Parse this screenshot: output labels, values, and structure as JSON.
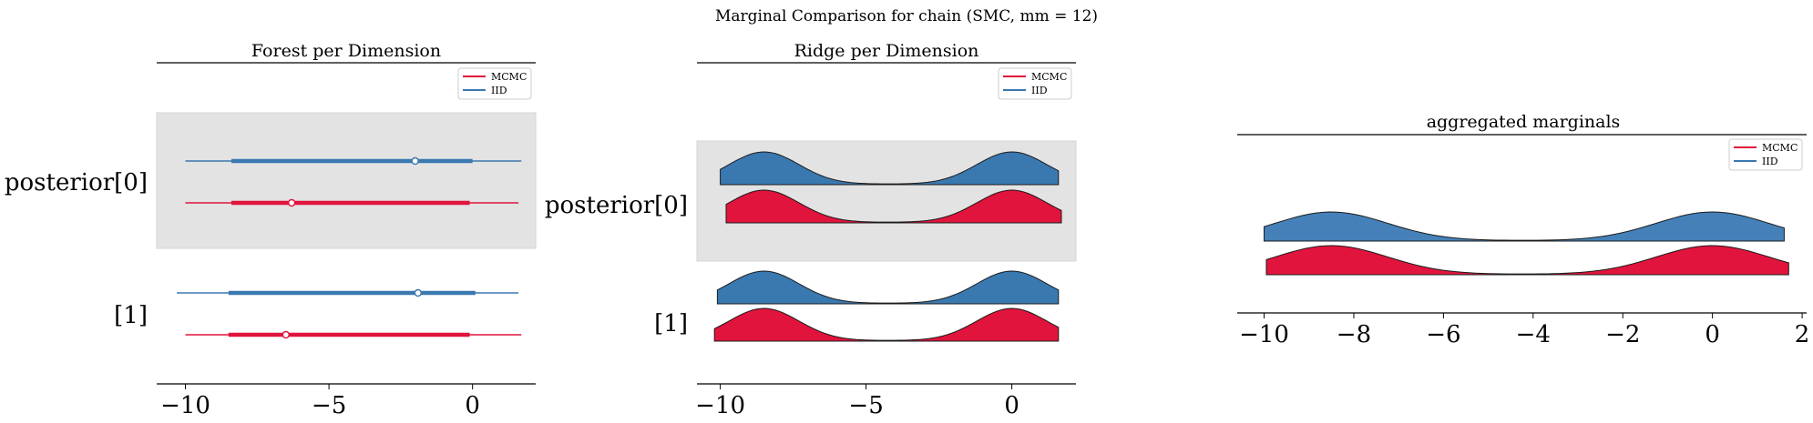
{
  "figure": {
    "suptitle": "Marginal Comparison for chain (SMC, mm = 12)"
  },
  "colors": {
    "mcmc": "#e0143c",
    "iid": "#3a78b0",
    "highlight": "#e3e3e3"
  },
  "legend": {
    "mcmc": "MCMC",
    "iid": "IID"
  },
  "chart_data": [
    {
      "type": "forest",
      "title": "Forest per Dimension",
      "ylabels": [
        "posterior[0]",
        "[1]"
      ],
      "xticks": [
        -10,
        -5,
        0
      ],
      "xtick_labels": [
        "−10",
        "−5",
        "0"
      ],
      "xlim": [
        -11,
        2.2
      ],
      "legend_position": "upper right",
      "highlight_row": 0,
      "series": [
        {
          "name": "MCMC",
          "color": "#e0143c",
          "rows": [
            {
              "hdi_low": -10.0,
              "q_low": -8.4,
              "median": -6.3,
              "q_high": -0.1,
              "hdi_high": 1.6
            },
            {
              "hdi_low": -10.0,
              "q_low": -8.5,
              "median": -6.5,
              "q_high": -0.1,
              "hdi_high": 1.7
            }
          ]
        },
        {
          "name": "IID",
          "color": "#3a78b0",
          "rows": [
            {
              "hdi_low": -10.0,
              "q_low": -8.4,
              "median": -2.0,
              "q_high": 0.0,
              "hdi_high": 1.7
            },
            {
              "hdi_low": -10.3,
              "q_low": -8.5,
              "median": -1.9,
              "q_high": 0.1,
              "hdi_high": 1.6
            }
          ]
        }
      ]
    },
    {
      "type": "ridge",
      "title": "Ridge per Dimension",
      "ylabels": [
        "posterior[0]",
        "[1]"
      ],
      "xticks": [
        -10,
        -5,
        0
      ],
      "xtick_labels": [
        "−10",
        "−5",
        "0"
      ],
      "xlim": [
        -10.8,
        2.2
      ],
      "legend_position": "upper right",
      "highlight_row": 0,
      "series": [
        {
          "name": "IID",
          "color": "#3a78b0",
          "rows": [
            {
              "xmin": -10.0,
              "xmax": 1.6
            },
            {
              "xmin": -10.1,
              "xmax": 1.6
            }
          ]
        },
        {
          "name": "MCMC",
          "color": "#e0143c",
          "rows": [
            {
              "xmin": -9.8,
              "xmax": 1.7
            },
            {
              "xmin": -10.2,
              "xmax": 1.6
            }
          ]
        }
      ],
      "density": {
        "mode_left": -8.5,
        "mode_right": 0.0,
        "sd": 1.2
      }
    },
    {
      "type": "area",
      "title": "aggregated marginals",
      "xticks": [
        -10,
        -8,
        -6,
        -4,
        -2,
        0,
        2
      ],
      "xtick_labels": [
        "−10",
        "−8",
        "−6",
        "−4",
        "−2",
        "0",
        "2"
      ],
      "xlim": [
        -10.6,
        2.1
      ],
      "legend_position": "upper right",
      "series": [
        {
          "name": "IID",
          "color": "#4581b8",
          "xmin": -10.0,
          "xmax": 1.6
        },
        {
          "name": "MCMC",
          "color": "#e0143c",
          "xmin": -9.95,
          "xmax": 1.7
        }
      ],
      "density": {
        "mode_left": -8.5,
        "mode_right": 0.0,
        "sd": 1.25
      }
    }
  ]
}
